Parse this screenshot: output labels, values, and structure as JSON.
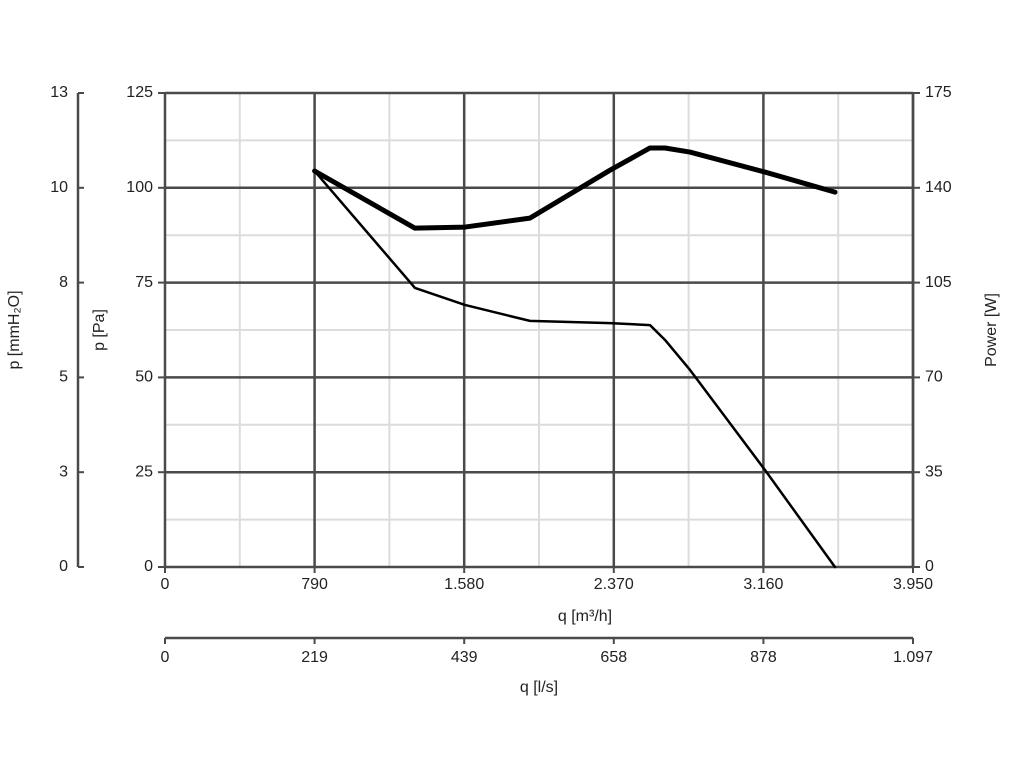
{
  "chart_data": {
    "type": "line",
    "xlabel": "q [m³/h]",
    "ylabel": "p [Pa]",
    "y2label": "Power [W]",
    "xlim": [
      0,
      3950
    ],
    "xticks": [
      0,
      790,
      {
        "value": 1580,
        "label": "1.580"
      },
      {
        "value": 2370,
        "label": "2.370"
      },
      {
        "value": 3160,
        "label": "3.160"
      },
      {
        "value": 3950,
        "label": "3.950"
      }
    ],
    "ylim": [
      0,
      125
    ],
    "yticks": [
      0,
      25,
      50,
      75,
      100,
      125
    ],
    "y2lim": [
      0,
      175
    ],
    "y2ticks": [
      0,
      35,
      70,
      105,
      140,
      175
    ],
    "grid": true,
    "x": [
      790,
      1320,
      1584,
      1927,
      2350,
      2561,
      2640,
      2772,
      3168,
      3538
    ],
    "series": [
      {
        "color": "#000000",
        "values": [
          104.4,
          73.6,
          69.1,
          64.9,
          64.3,
          63.8,
          59.9,
          52,
          25.6,
          0
        ]
      },
      {
        "color": "#000000",
        "axis": "y2",
        "values": [
          146.2,
          125.1,
          125.5,
          128.8,
          146.5,
          154.7,
          154.7,
          153.2,
          145.8,
          138.4
        ]
      }
    ],
    "mmh2o_axis": {
      "label": "p [mmH₂O]",
      "ylim": [
        0,
        12.75
      ],
      "yticks": [
        0,
        {
          "value": 2.55,
          "label": "3"
        },
        {
          "value": 5.1,
          "label": "5"
        },
        {
          "value": 7.65,
          "label": "8"
        },
        {
          "value": 10.2,
          "label": "10"
        },
        {
          "value": 12.75,
          "label": "13"
        }
      ]
    },
    "ls_axis": {
      "label": "q [l/s]",
      "xlim": [
        0,
        1097.2
      ],
      "xticks": [
        0,
        {
          "value": 219.4,
          "label": "219"
        },
        {
          "value": 438.9,
          "label": "439"
        },
        {
          "value": 658.3,
          "label": "658"
        },
        {
          "value": 877.8,
          "label": "878"
        },
        {
          "value": 1097.2,
          "label": "1.097"
        }
      ]
    }
  }
}
